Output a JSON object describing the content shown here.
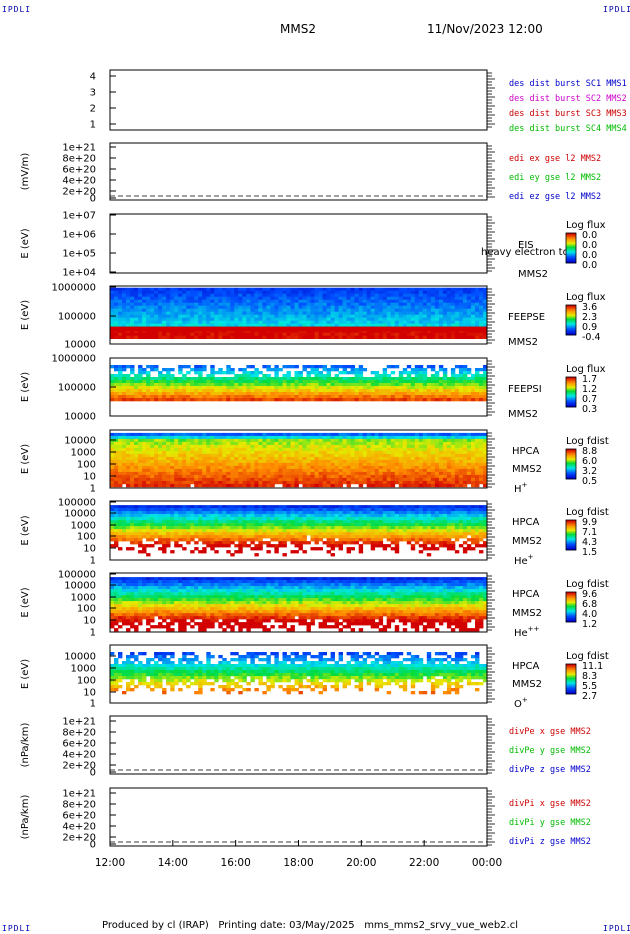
{
  "header": {
    "corner_label": "IPDLI",
    "spacecraft": "MMS2",
    "datetime": "11/Nov/2023 12:00"
  },
  "footer": {
    "text": "Produced by cl (IRAP)   Printing date: 03/May/2025   mms_mms2_srvy_vue_web2.cl"
  },
  "colors": {
    "red": "#cc0000",
    "green": "#00bb00",
    "blue": "#0000cc",
    "magenta": "#cc00cc"
  },
  "chart_data": {
    "type": "heatmap",
    "x_axis": {
      "tick_labels": [
        "12:00",
        "14:00",
        "16:00",
        "18:00",
        "20:00",
        "22:00",
        "00:00"
      ],
      "range_hours": [
        12,
        24
      ]
    },
    "panels": [
      {
        "id": "dist-burst",
        "kind": "blank",
        "yticks": [
          "4",
          "3",
          "2",
          "1"
        ],
        "legend": [
          {
            "text": "des dist burst SC1 MMS1",
            "color": "#0000cc"
          },
          {
            "text": "des dist burst SC2 MMS2",
            "color": "#cc00cc"
          },
          {
            "text": "des dist burst SC3 MMS3",
            "color": "#cc0000"
          },
          {
            "text": "des dist burst SC4 MMS4",
            "color": "#00bb00"
          }
        ]
      },
      {
        "id": "edi-e",
        "kind": "line",
        "ylabel": "(mV/m)",
        "yticks": [
          "1e+21",
          "8e+20",
          "6e+20",
          "4e+20",
          "2e+20",
          "0"
        ],
        "legend": [
          {
            "text": "edi ex gse l2 MMS2",
            "color": "#cc0000"
          },
          {
            "text": "edi ey gse l2 MMS2",
            "color": "#00bb00"
          },
          {
            "text": "edi ez gse l2 MMS2",
            "color": "#0000cc"
          }
        ]
      },
      {
        "id": "eis",
        "kind": "spectrogram",
        "ylabel": "E (eV)",
        "yticks": [
          "1e+07",
          "1e+06",
          "1e+05",
          "1e+04"
        ],
        "instrument": [
          "EIS",
          "MMS2"
        ],
        "overlay_text": "heavy electron to",
        "colorbar": {
          "title": "Log flux",
          "ticks": [
            "0.0",
            "0.0",
            "0.0",
            "0.0"
          ]
        }
      },
      {
        "id": "feepse",
        "kind": "spectrogram",
        "ylabel": "E (eV)",
        "yticks": [
          "1000000",
          "100000",
          "10000"
        ],
        "instrument": [
          "FEEPSE",
          "MMS2"
        ],
        "colorbar": {
          "title": "Log flux",
          "ticks": [
            "3.6",
            "2.3",
            "0.9",
            "-0.4"
          ]
        }
      },
      {
        "id": "feepsi",
        "kind": "spectrogram",
        "ylabel": "E (eV)",
        "yticks": [
          "1000000",
          "100000",
          "10000"
        ],
        "instrument": [
          "FEEPSI",
          "MMS2"
        ],
        "colorbar": {
          "title": "Log flux",
          "ticks": [
            "1.7",
            "1.2",
            "0.7",
            "0.3"
          ]
        }
      },
      {
        "id": "hpca-h",
        "kind": "spectrogram",
        "ylabel": "E (eV)",
        "yticks": [
          "10000",
          "1000",
          "100",
          "10",
          "1"
        ],
        "instrument": [
          "HPCA",
          "MMS2"
        ],
        "species": "H",
        "charge": "+",
        "colorbar": {
          "title": "Log fdist",
          "ticks": [
            "8.8",
            "6.0",
            "3.2",
            "0.5"
          ]
        }
      },
      {
        "id": "hpca-he",
        "kind": "spectrogram",
        "ylabel": "E (eV)",
        "yticks": [
          "100000",
          "10000",
          "1000",
          "100",
          "10",
          "1"
        ],
        "instrument": [
          "HPCA",
          "MMS2"
        ],
        "species": "He",
        "charge": "+",
        "colorbar": {
          "title": "Log fdist",
          "ticks": [
            "9.9",
            "7.1",
            "4.3",
            "1.5"
          ]
        }
      },
      {
        "id": "hpca-hepp",
        "kind": "spectrogram",
        "ylabel": "E (eV)",
        "yticks": [
          "100000",
          "10000",
          "1000",
          "100",
          "10",
          "1"
        ],
        "instrument": [
          "HPCA",
          "MMS2"
        ],
        "species": "He",
        "charge": "++",
        "colorbar": {
          "title": "Log fdist",
          "ticks": [
            "9.6",
            "6.8",
            "4.0",
            "1.2"
          ]
        }
      },
      {
        "id": "hpca-o",
        "kind": "spectrogram",
        "ylabel": "E (eV)",
        "yticks": [
          "10000",
          "1000",
          "100",
          "10",
          "1"
        ],
        "instrument": [
          "HPCA",
          "MMS2"
        ],
        "species": "O",
        "charge": "+",
        "colorbar": {
          "title": "Log fdist",
          "ticks": [
            "11.1",
            "8.3",
            "5.5",
            "2.7"
          ]
        }
      },
      {
        "id": "divpe",
        "kind": "line",
        "ylabel": "(nPa/km)",
        "yticks": [
          "1e+21",
          "8e+20",
          "6e+20",
          "4e+20",
          "2e+20",
          "0"
        ],
        "legend": [
          {
            "text": "divPe x gse MMS2",
            "color": "#cc0000"
          },
          {
            "text": "divPe y gse MMS2",
            "color": "#00bb00"
          },
          {
            "text": "divPe z gse MMS2",
            "color": "#0000cc"
          }
        ]
      },
      {
        "id": "divpi",
        "kind": "line",
        "ylabel": "(nPa/km)",
        "yticks": [
          "1e+21",
          "8e+20",
          "6e+20",
          "4e+20",
          "2e+20",
          "0"
        ],
        "legend": [
          {
            "text": "divPi x gse MMS2",
            "color": "#cc0000"
          },
          {
            "text": "divPi y gse MMS2",
            "color": "#00bb00"
          },
          {
            "text": "divPi z gse MMS2",
            "color": "#0000cc"
          }
        ]
      }
    ]
  }
}
